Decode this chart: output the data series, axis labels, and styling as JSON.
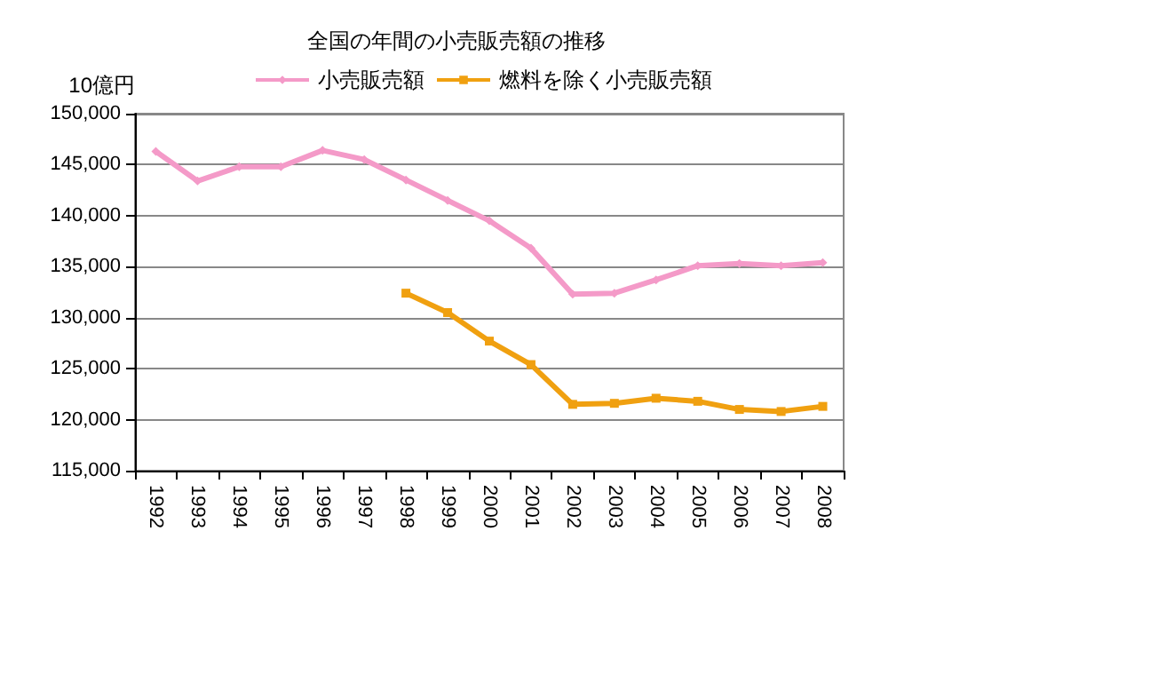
{
  "chart_data": {
    "type": "line",
    "title": "全国の年間の小売販売額の推移",
    "ylabel": "10億円",
    "categories": [
      "1992",
      "1993",
      "1994",
      "1995",
      "1996",
      "1997",
      "1998",
      "1999",
      "2000",
      "2001",
      "2002",
      "2003",
      "2004",
      "2005",
      "2006",
      "2007",
      "2008"
    ],
    "series": [
      {
        "name": "小売販売額",
        "color": "#f49ac8",
        "marker": "diamond",
        "values": [
          146300,
          143400,
          144800,
          144800,
          146400,
          145500,
          143500,
          141500,
          139500,
          136800,
          132300,
          132400,
          133700,
          135100,
          135300,
          135100,
          135400
        ]
      },
      {
        "name": "燃料を除く小売販売額",
        "color": "#f0a010",
        "marker": "square",
        "values": [
          null,
          null,
          null,
          null,
          null,
          null,
          132400,
          130500,
          127700,
          125400,
          121500,
          121600,
          122100,
          121800,
          121000,
          120800,
          121300
        ]
      }
    ],
    "ylim": [
      115000,
      150000
    ],
    "yticks": [
      {
        "value": 115000,
        "label": "115,000"
      },
      {
        "value": 120000,
        "label": "120,000"
      },
      {
        "value": 125000,
        "label": "125,000"
      },
      {
        "value": 130000,
        "label": "130,000"
      },
      {
        "value": 135000,
        "label": "135,000"
      },
      {
        "value": 140000,
        "label": "140,000"
      },
      {
        "value": 145000,
        "label": "145,000"
      },
      {
        "value": 150000,
        "label": "150,000"
      }
    ],
    "grid": "y",
    "legend": "top"
  }
}
